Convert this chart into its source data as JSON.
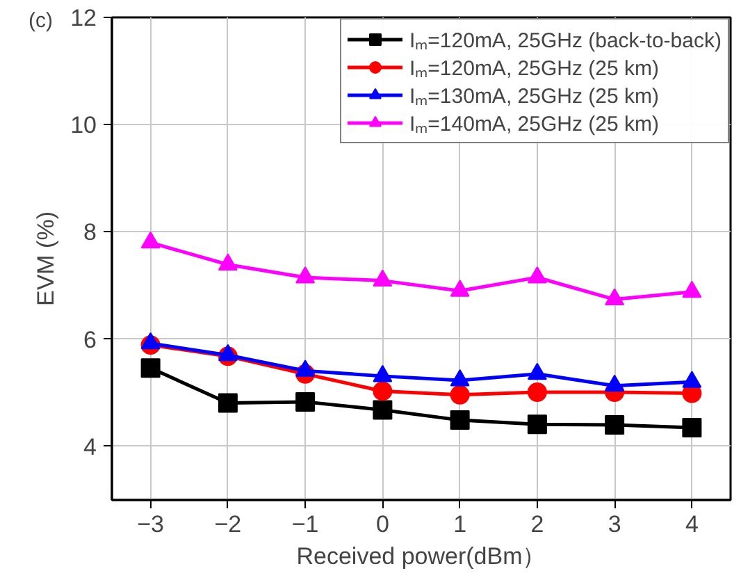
{
  "chart_data": {
    "type": "line",
    "title": "(c)",
    "xlabel": "Received power(dBm）",
    "ylabel": "EVM (%)",
    "x": [
      -3,
      -2,
      -1,
      0,
      1,
      2,
      3,
      4
    ],
    "series": [
      {
        "name": "Iₘ=120mA, 25GHz (back-to-back)",
        "color": "#000000",
        "marker": "square",
        "values": [
          5.46,
          4.81,
          4.83,
          4.68,
          4.49,
          4.41,
          4.4,
          4.35
        ]
      },
      {
        "name": "Iₘ=120mA, 25GHz (25 km)",
        "color": "#ff0000",
        "marker": "circle",
        "values": [
          5.89,
          5.68,
          5.35,
          5.03,
          4.96,
          5.01,
          5.01,
          4.99
        ]
      },
      {
        "name": "Iₘ=130mA, 25GHz (25 km)",
        "color": "#0000ff",
        "marker": "triangle",
        "values": [
          5.92,
          5.7,
          5.41,
          5.31,
          5.23,
          5.35,
          5.13,
          5.2
        ]
      },
      {
        "name": "Iₘ=140mA, 25GHz (25 km)",
        "color": "#ff00ff",
        "marker": "triangle",
        "values": [
          7.8,
          7.39,
          7.15,
          7.09,
          6.9,
          7.15,
          6.74,
          6.88
        ]
      }
    ],
    "xlim": [
      -3.5,
      4.5
    ],
    "ylim": [
      3,
      12
    ],
    "xticks": [
      -3,
      -2,
      -1,
      0,
      1,
      2,
      3,
      4
    ],
    "yticks": [
      4,
      6,
      8,
      10,
      12
    ],
    "grid": true,
    "legend": "top right",
    "line_style": "solid"
  }
}
